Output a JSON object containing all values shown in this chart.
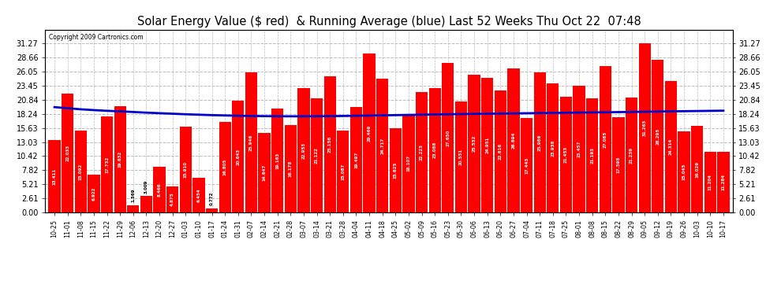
{
  "title": "Solar Energy Value ($ red)  & Running Average (blue) Last 52 Weeks Thu Oct 22  07:48",
  "copyright": "Copyright 2009 Cartronics.com",
  "bar_color": "#ff0000",
  "avg_line_color": "#0000cc",
  "background_color": "#ffffff",
  "grid_color": "#bbbbbb",
  "categories": [
    "10-25",
    "11-01",
    "11-08",
    "11-15",
    "11-22",
    "11-29",
    "12-06",
    "12-13",
    "12-20",
    "12-27",
    "01-03",
    "01-10",
    "01-17",
    "01-24",
    "01-31",
    "02-07",
    "02-14",
    "02-21",
    "02-28",
    "03-07",
    "03-14",
    "03-21",
    "03-28",
    "04-04",
    "04-11",
    "04-18",
    "04-25",
    "05-02",
    "05-09",
    "05-16",
    "05-23",
    "05-30",
    "06-06",
    "06-13",
    "06-20",
    "06-27",
    "07-04",
    "07-11",
    "07-18",
    "07-25",
    "08-01",
    "08-08",
    "08-15",
    "08-22",
    "08-29",
    "09-05",
    "09-12",
    "09-19",
    "09-26",
    "10-03",
    "10-10",
    "10-17"
  ],
  "values": [
    13.411,
    22.033,
    15.092,
    6.922,
    17.732,
    19.632,
    1.369,
    3.009,
    8.466,
    4.875,
    15.91,
    6.454,
    0.772,
    16.805,
    20.643,
    25.946,
    14.647,
    19.163,
    16.178,
    22.953,
    21.122,
    25.156,
    15.087,
    19.497,
    29.469,
    24.717,
    15.625,
    18.107,
    22.223,
    23.088,
    27.65,
    20.551,
    25.532,
    24.951,
    22.616,
    26.694,
    17.443,
    25.986,
    23.938,
    21.453,
    23.457,
    21.193,
    27.085,
    17.598,
    21.239,
    31.265,
    28.295,
    24.314,
    15.045,
    16.029,
    11.204,
    11.284
  ],
  "ylim": [
    0,
    33.88
  ],
  "yticks": [
    0.0,
    2.61,
    5.21,
    7.82,
    10.42,
    13.03,
    15.63,
    18.24,
    20.84,
    23.45,
    26.05,
    28.66,
    31.27
  ],
  "avg_values": [
    19.5,
    19.3,
    19.1,
    18.95,
    18.82,
    18.72,
    18.6,
    18.48,
    18.38,
    18.28,
    18.18,
    18.1,
    18.02,
    17.96,
    17.9,
    17.86,
    17.83,
    17.81,
    17.8,
    17.8,
    17.81,
    17.83,
    17.86,
    17.9,
    17.94,
    17.98,
    18.02,
    18.06,
    18.1,
    18.14,
    18.18,
    18.22,
    18.25,
    18.28,
    18.31,
    18.34,
    18.37,
    18.4,
    18.43,
    18.46,
    18.49,
    18.52,
    18.55,
    18.58,
    18.61,
    18.65,
    18.68,
    18.72,
    18.75,
    18.78,
    18.81,
    18.84
  ]
}
